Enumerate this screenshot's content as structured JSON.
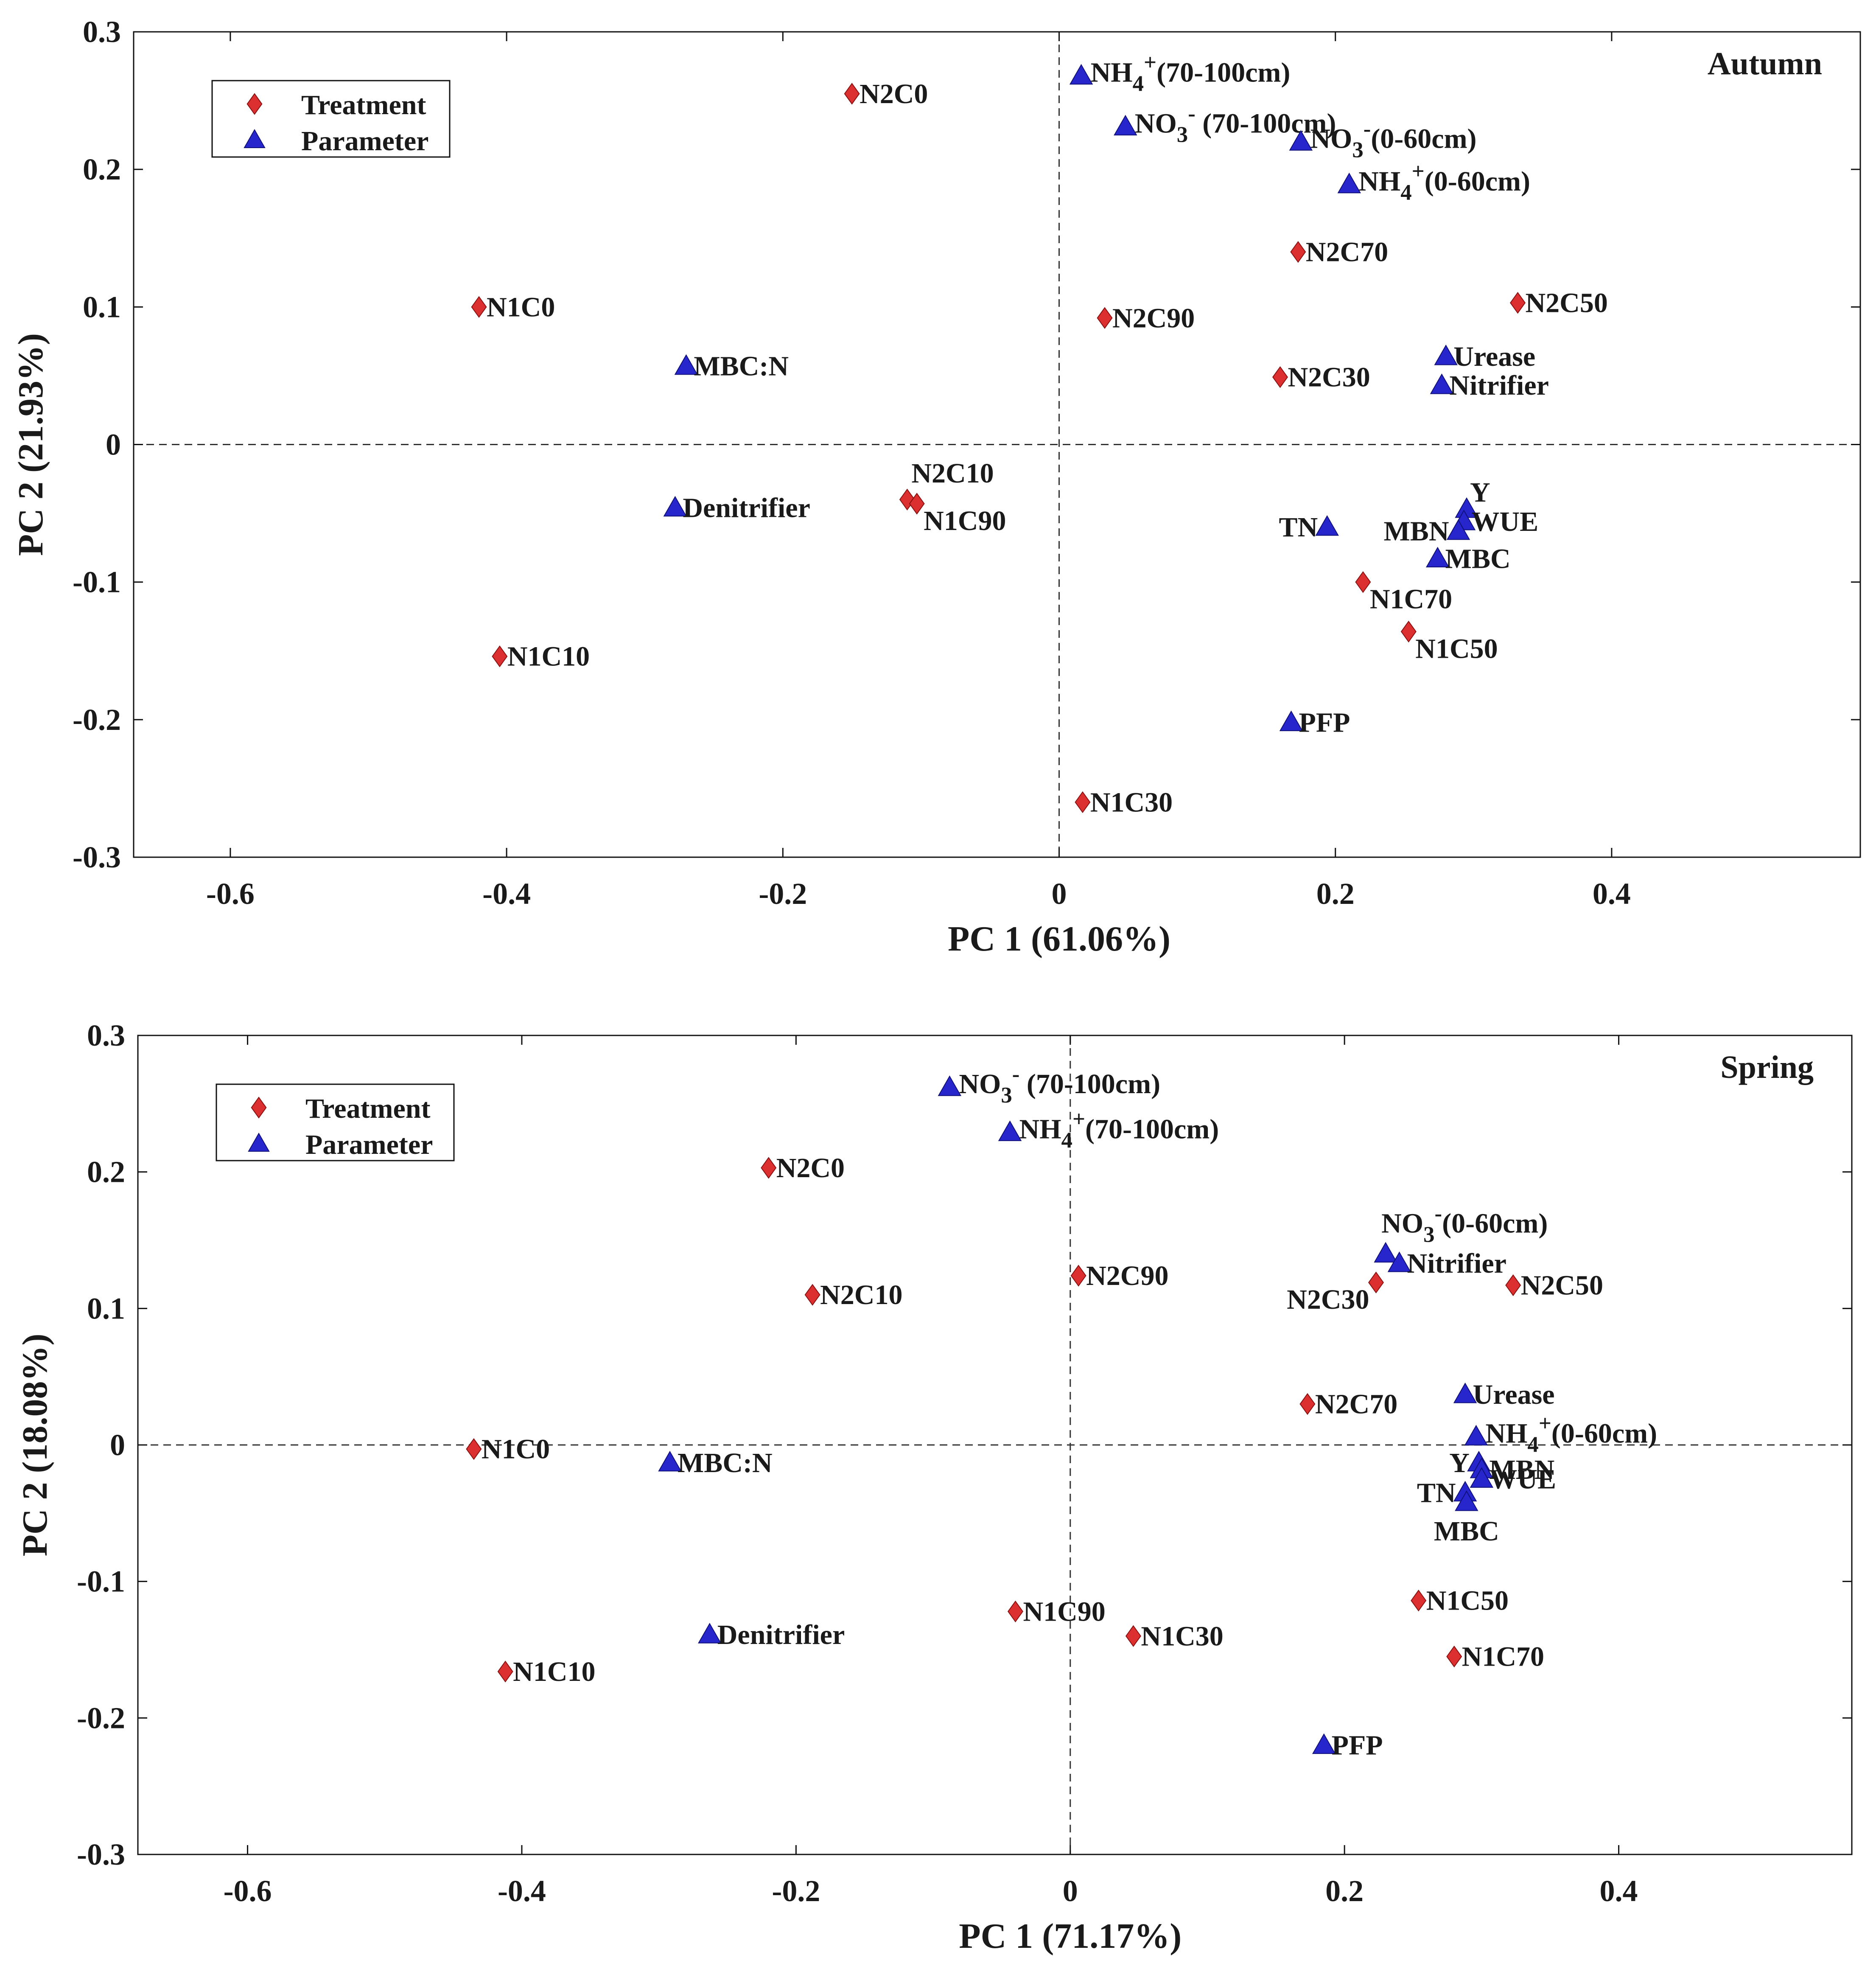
{
  "colors": {
    "treatment": "#dc3030",
    "parameter": "#2626cc",
    "axis": "#111111",
    "background": "#ffffff"
  },
  "chart_data": [
    {
      "type": "scatter",
      "title": "Autumn",
      "xlabel": "PC 1 (61.06%)",
      "ylabel": "PC 2 (21.93%)",
      "xlim": [
        -0.67,
        0.58
      ],
      "ylim": [
        -0.3,
        0.3
      ],
      "xticks": [
        -0.6,
        -0.4,
        -0.2,
        0,
        0.2,
        0.4
      ],
      "yticks": [
        -0.3,
        -0.2,
        -0.1,
        0,
        0.1,
        0.2,
        0.3
      ],
      "xtick_labels": [
        "-0.6",
        "-0.4",
        "-0.2",
        "0",
        "0.2",
        "0.4"
      ],
      "ytick_labels": [
        "-0.3",
        "-0.2",
        "-0.1",
        "0",
        "0.1",
        "0.2",
        "0.3"
      ],
      "grid": false,
      "zero_lines": true,
      "legend_position": "top-left",
      "legend": [
        {
          "label": "Treatment",
          "marker": "diamond"
        },
        {
          "label": "Parameter",
          "marker": "triangle"
        }
      ],
      "series": [
        {
          "name": "Treatment",
          "marker": "diamond",
          "points": [
            {
              "label": "N2C0",
              "x": -0.15,
              "y": 0.255,
              "anchor": "right"
            },
            {
              "label": "N1C0",
              "x": -0.42,
              "y": 0.1,
              "anchor": "right"
            },
            {
              "label": "N2C70",
              "x": 0.173,
              "y": 0.14,
              "anchor": "right"
            },
            {
              "label": "N2C50",
              "x": 0.332,
              "y": 0.103,
              "anchor": "right"
            },
            {
              "label": "N2C90",
              "x": 0.033,
              "y": 0.092,
              "anchor": "right"
            },
            {
              "label": "N2C30",
              "x": 0.16,
              "y": 0.049,
              "anchor": "right"
            },
            {
              "label": "N2C10",
              "x": -0.11,
              "y": -0.04,
              "anchor": "above"
            },
            {
              "label": "N1C90",
              "x": -0.103,
              "y": -0.043,
              "anchor": "below-right"
            },
            {
              "label": "N1C70",
              "x": 0.22,
              "y": -0.1,
              "anchor": "below-right"
            },
            {
              "label": "N1C50",
              "x": 0.253,
              "y": -0.136,
              "anchor": "below-right"
            },
            {
              "label": "N1C10",
              "x": -0.405,
              "y": -0.154,
              "anchor": "right"
            },
            {
              "label": "N1C30",
              "x": 0.017,
              "y": -0.26,
              "anchor": "right"
            }
          ]
        },
        {
          "name": "Parameter",
          "marker": "triangle",
          "points": [
            {
              "label": "NH4+(70-100cm)",
              "x": 0.016,
              "y": 0.268,
              "anchor": "superscript-right",
              "base": "NH",
              "sub": "4",
              "sup": "+",
              "rest": "(70-100cm)"
            },
            {
              "label": "NO3- (70-100cm)",
              "x": 0.048,
              "y": 0.231,
              "anchor": "superscript-right",
              "base": "NO",
              "sub": "3",
              "sup": "-",
              "rest": " (70-100cm)"
            },
            {
              "label": "NO3-(0-60cm)",
              "x": 0.175,
              "y": 0.22,
              "anchor": "superscript-right",
              "base": "NO",
              "sub": "3",
              "sup": "-",
              "rest": "(0-60cm)"
            },
            {
              "label": "NH4+(0-60cm)",
              "x": 0.21,
              "y": 0.189,
              "anchor": "superscript-right",
              "base": "NH",
              "sub": "4",
              "sup": "+",
              "rest": "(0-60cm)"
            },
            {
              "label": "Urease",
              "x": 0.28,
              "y": 0.064,
              "anchor": "right"
            },
            {
              "label": "Nitrifier",
              "x": 0.277,
              "y": 0.043,
              "anchor": "right"
            },
            {
              "label": "MBC:N",
              "x": -0.27,
              "y": 0.057,
              "anchor": "right"
            },
            {
              "label": "Denitrifier",
              "x": -0.278,
              "y": -0.046,
              "anchor": "right"
            },
            {
              "label": "TN",
              "x": 0.194,
              "y": -0.06,
              "anchor": "left"
            },
            {
              "label": "Y",
              "x": 0.295,
              "y": -0.047,
              "anchor": "above-right"
            },
            {
              "label": "WUE",
              "x": 0.293,
              "y": -0.056,
              "anchor": "right"
            },
            {
              "label": "MBN",
              "x": 0.289,
              "y": -0.063,
              "anchor": "left"
            },
            {
              "label": "MBC",
              "x": 0.274,
              "y": -0.083,
              "anchor": "right"
            },
            {
              "label": "PFP",
              "x": 0.168,
              "y": -0.202,
              "anchor": "right"
            }
          ]
        }
      ]
    },
    {
      "type": "scatter",
      "title": "Spring",
      "xlabel": "PC 1 (71.17%)",
      "ylabel": "PC 2 (18.08%)",
      "xlim": [
        -0.68,
        0.57
      ],
      "ylim": [
        -0.3,
        0.3
      ],
      "xticks": [
        -0.6,
        -0.4,
        -0.2,
        0,
        0.2,
        0.4
      ],
      "yticks": [
        -0.3,
        -0.2,
        -0.1,
        0,
        0.1,
        0.2,
        0.3
      ],
      "xtick_labels": [
        "-0.6",
        "-0.4",
        "-0.2",
        "0",
        "0.2",
        "0.4"
      ],
      "ytick_labels": [
        "-0.3",
        "-0.2",
        "-0.1",
        "0",
        "0.1",
        "0.2",
        "0.3"
      ],
      "grid": false,
      "zero_lines": true,
      "legend_position": "top-left",
      "legend": [
        {
          "label": "Treatment",
          "marker": "diamond"
        },
        {
          "label": "Parameter",
          "marker": "triangle"
        }
      ],
      "series": [
        {
          "name": "Treatment",
          "marker": "diamond",
          "points": [
            {
              "label": "N2C0",
              "x": -0.22,
              "y": 0.203,
              "anchor": "right"
            },
            {
              "label": "N2C10",
              "x": -0.188,
              "y": 0.11,
              "anchor": "right"
            },
            {
              "label": "N2C90",
              "x": 0.006,
              "y": 0.124,
              "anchor": "right"
            },
            {
              "label": "N2C30",
              "x": 0.223,
              "y": 0.119,
              "anchor": "below-left"
            },
            {
              "label": "N2C50",
              "x": 0.323,
              "y": 0.117,
              "anchor": "right"
            },
            {
              "label": "N2C70",
              "x": 0.173,
              "y": 0.03,
              "anchor": "right"
            },
            {
              "label": "N1C0",
              "x": -0.435,
              "y": -0.003,
              "anchor": "right"
            },
            {
              "label": "N1C90",
              "x": -0.04,
              "y": -0.122,
              "anchor": "right"
            },
            {
              "label": "N1C30",
              "x": 0.046,
              "y": -0.14,
              "anchor": "right"
            },
            {
              "label": "N1C50",
              "x": 0.254,
              "y": -0.114,
              "anchor": "right"
            },
            {
              "label": "N1C70",
              "x": 0.28,
              "y": -0.155,
              "anchor": "right"
            },
            {
              "label": "N1C10",
              "x": -0.412,
              "y": -0.166,
              "anchor": "right"
            }
          ]
        },
        {
          "name": "Parameter",
          "marker": "triangle",
          "points": [
            {
              "label": "NO3- (70-100cm)",
              "x": -0.088,
              "y": 0.262,
              "anchor": "superscript-right",
              "base": "NO",
              "sub": "3",
              "sup": "-",
              "rest": " (70-100cm)"
            },
            {
              "label": "NH4+(70-100cm)",
              "x": -0.044,
              "y": 0.229,
              "anchor": "superscript-right",
              "base": "NH",
              "sub": "4",
              "sup": "+",
              "rest": "(70-100cm)"
            },
            {
              "label": "NO3-(0-60cm)",
              "x": 0.23,
              "y": 0.14,
              "anchor": "superscript-above",
              "base": "NO",
              "sub": "3",
              "sup": "-",
              "rest": "(0-60cm)"
            },
            {
              "label": "Nitrifier",
              "x": 0.24,
              "y": 0.133,
              "anchor": "right"
            },
            {
              "label": "Urease",
              "x": 0.288,
              "y": 0.037,
              "anchor": "right"
            },
            {
              "label": "NH4+(0-60cm)",
              "x": 0.296,
              "y": 0.006,
              "anchor": "superscript-right",
              "base": "NH",
              "sub": "4",
              "sup": "+",
              "rest": "(0-60cm)"
            },
            {
              "label": "Y",
              "x": 0.298,
              "y": -0.013,
              "anchor": "left"
            },
            {
              "label": "MBN",
              "x": 0.3,
              "y": -0.018,
              "anchor": "right"
            },
            {
              "label": "WUE",
              "x": 0.3,
              "y": -0.025,
              "anchor": "right"
            },
            {
              "label": "TN",
              "x": 0.288,
              "y": -0.035,
              "anchor": "left"
            },
            {
              "label": "MBC",
              "x": 0.289,
              "y": -0.042,
              "anchor": "below"
            },
            {
              "label": "MBC:N",
              "x": -0.292,
              "y": -0.013,
              "anchor": "right"
            },
            {
              "label": "Denitrifier",
              "x": -0.263,
              "y": -0.139,
              "anchor": "right"
            },
            {
              "label": "PFP",
              "x": 0.185,
              "y": -0.22,
              "anchor": "right"
            }
          ]
        }
      ]
    }
  ]
}
